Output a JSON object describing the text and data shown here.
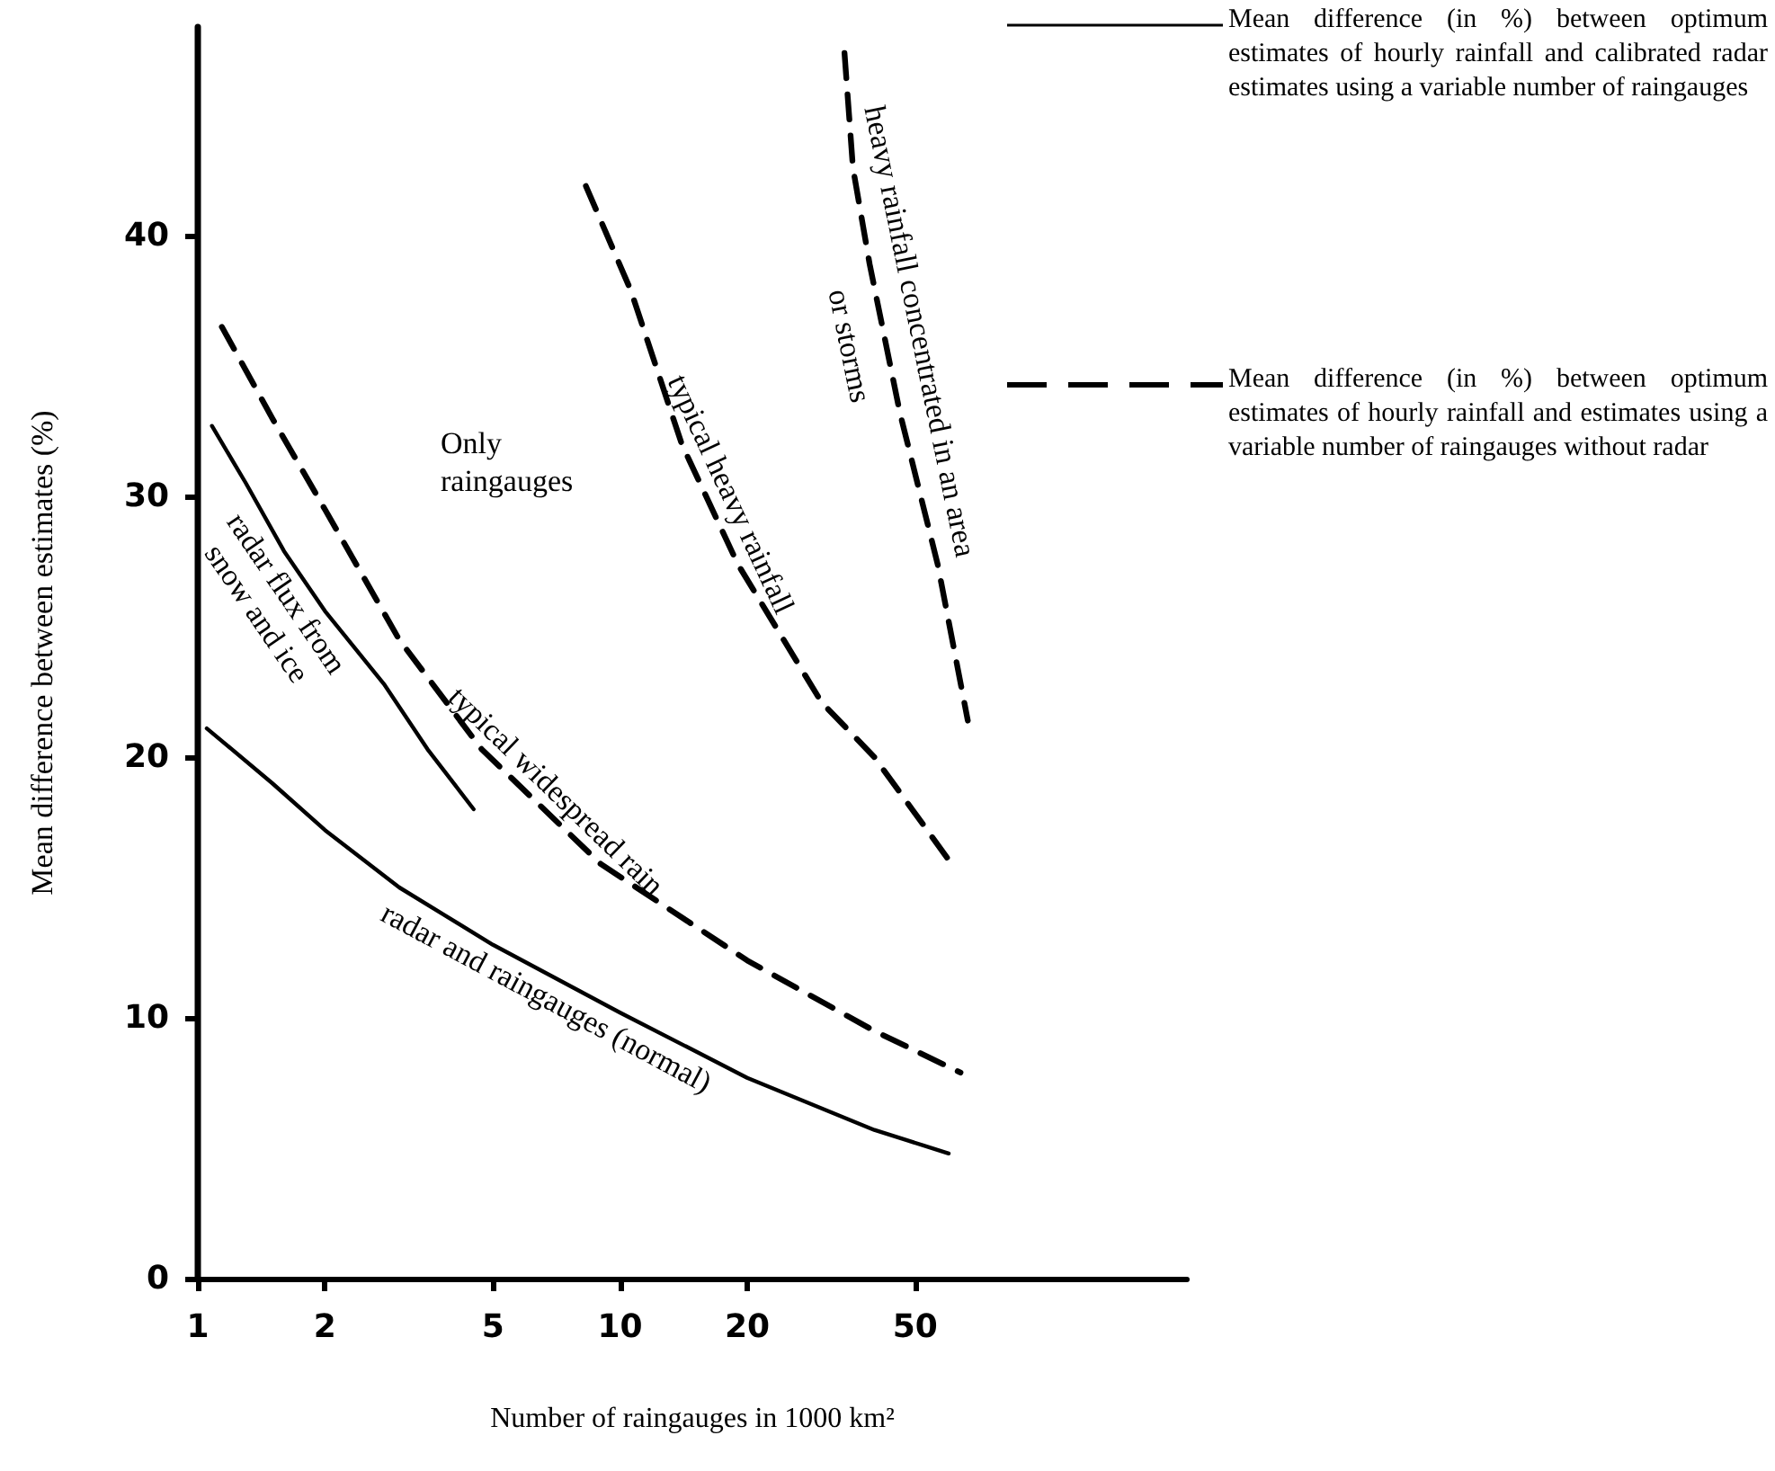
{
  "chart_data": {
    "type": "line",
    "xlabel": "Number of raingauges in 1000 km²",
    "ylabel": "Mean difference between estimates (%)",
    "log": "x",
    "xlim": [
      1,
      220
    ],
    "xticks": [
      1,
      2,
      5,
      10,
      20,
      50
    ],
    "ylim": [
      0,
      48
    ],
    "yticks": [
      0,
      10,
      20,
      30,
      40
    ],
    "grid": false,
    "marker": "none",
    "annotations": [
      "Only raingauges",
      "Mean difference (in %) between optimum estimates of hourly rainfall and calibrated radar estimates using a variable number of raingauges",
      "Mean difference (in %) between optimum estimates of hourly rainfall and estimates using a variable number of raingauges without radar"
    ],
    "series": [
      {
        "name": "radar and raingauges (normal)",
        "color": "#000000",
        "line_style": "solid",
        "x": [
          1.05,
          1.5,
          2,
          3,
          5,
          10,
          20,
          40,
          60
        ],
        "values": [
          21.1,
          19,
          17.2,
          15,
          12.8,
          10.2,
          7.7,
          5.7,
          4.8
        ]
      },
      {
        "name": "radar flux from\nsnow and ice",
        "color": "#000000",
        "line_style": "solid",
        "x": [
          1.08,
          1.3,
          1.6,
          2,
          2.76,
          3.5,
          4.5
        ],
        "values": [
          32.7,
          30.5,
          27.9,
          25.6,
          22.8,
          20.3,
          18
        ]
      },
      {
        "name": "typical widespread rain",
        "color": "#000000",
        "line_style": "dashed",
        "x": [
          1.14,
          1.5,
          2,
          3,
          4.7,
          9,
          20,
          40,
          64
        ],
        "values": [
          36.5,
          33,
          29.5,
          24.5,
          20.3,
          15.9,
          12.2,
          9.5,
          7.9
        ]
      },
      {
        "name": "typical heavy rainfall",
        "color": "#000000",
        "line_style": "dashed",
        "x": [
          8.3,
          10.6,
          14,
          19,
          30,
          40,
          61
        ],
        "values": [
          41.9,
          37.9,
          32,
          27.4,
          22.1,
          20,
          15.9
        ]
      },
      {
        "name": "heavy rainfall concentrated in an area\nor storms",
        "color": "#000000",
        "line_style": "dashed",
        "x": [
          34,
          35.6,
          39,
          46,
          56.5,
          66.6
        ],
        "values": [
          47,
          42.6,
          38.9,
          33.2,
          27.4,
          21.4
        ]
      }
    ]
  }
}
